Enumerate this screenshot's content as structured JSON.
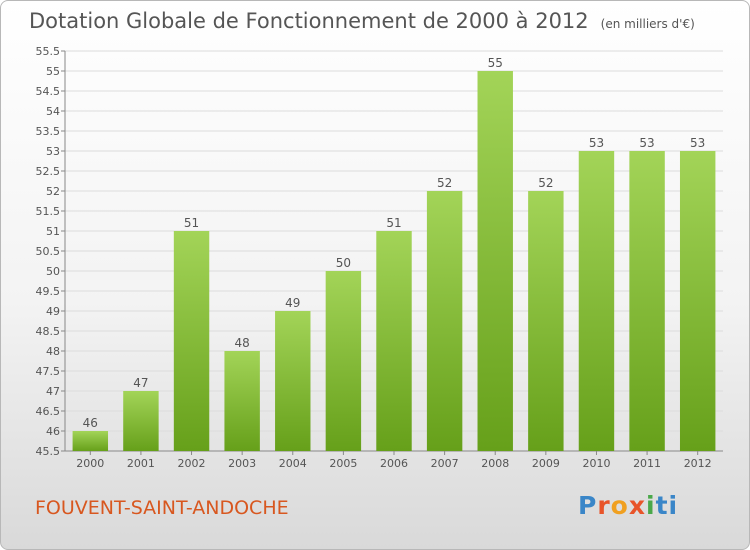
{
  "header": {
    "title": "Dotation Globale de Fonctionnement de 2000 à 2012",
    "unit": "(en milliers d'€)"
  },
  "footer": {
    "commune": "FOUVENT-SAINT-ANDOCHE",
    "logo_letters": [
      "P",
      "r",
      "o",
      "x",
      "i",
      "ti"
    ]
  },
  "colors": {
    "bar_light": "#a3d458",
    "bar_dark": "#66a01a",
    "grid": "#dcdcdc",
    "axis": "#888888",
    "text": "#555555"
  },
  "chart_data": {
    "type": "bar",
    "title": "Dotation Globale de Fonctionnement de 2000 à 2012",
    "xlabel": "",
    "ylabel": "",
    "categories": [
      "2000",
      "2001",
      "2002",
      "2003",
      "2004",
      "2005",
      "2006",
      "2007",
      "2008",
      "2009",
      "2010",
      "2011",
      "2012"
    ],
    "values": [
      46,
      47,
      51,
      48,
      49,
      50,
      51,
      52,
      55,
      52,
      53,
      53,
      53
    ],
    "ylim": [
      45.5,
      55.5
    ],
    "ytick_step": 0.5,
    "ytick_labels": [
      "45.5",
      "46",
      "46.5",
      "47",
      "47.5",
      "48",
      "48.5",
      "49",
      "49.5",
      "50",
      "50.5",
      "51",
      "51.5",
      "52",
      "52.5",
      "53",
      "53.5",
      "54",
      "54.5",
      "55",
      "55.5"
    ],
    "grid": true,
    "data_labels": true
  }
}
